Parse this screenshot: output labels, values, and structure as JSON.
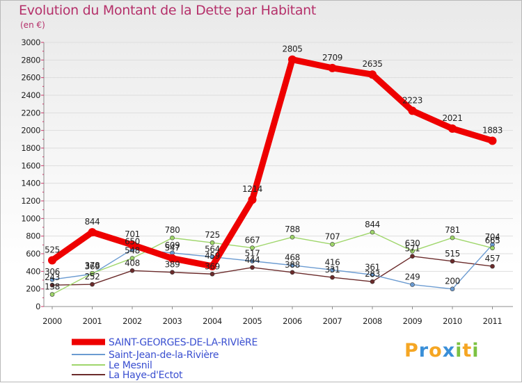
{
  "chart_data": {
    "type": "line",
    "title": "Evolution du Montant de la Dette par Habitant",
    "subtitle": "(en €)",
    "xlabel": "",
    "ylabel": "",
    "ylim": [
      0,
      3000
    ],
    "yticks": [
      0,
      200,
      400,
      600,
      800,
      1000,
      1200,
      1400,
      1600,
      1800,
      2000,
      2200,
      2400,
      2600,
      2800,
      3000
    ],
    "categories": [
      "2000",
      "2001",
      "2002",
      "2003",
      "2004",
      "2005",
      "2006",
      "2007",
      "2008",
      "2009",
      "2010",
      "2011"
    ],
    "grid": true,
    "legend_position": "bottom-left",
    "series": [
      {
        "name": "SAINT-GEORGES-DE-LA-RIVIèRE",
        "color": "#ee0000",
        "values": [
          525,
          844,
          701,
          547,
          459,
          1214,
          2805,
          2709,
          2635,
          2223,
          2021,
          1883
        ],
        "labels": [
          "525",
          "844",
          "701",
          "547",
          "459",
          "1214",
          "2805",
          "2709",
          "2635",
          "2223",
          "2021",
          "1883"
        ]
      },
      {
        "name": "Saint-Jean-de-la-Rivière",
        "color": "#6b9bd1",
        "values": [
          306,
          369,
          650,
          609,
          564,
          517,
          468,
          416,
          361,
          249,
          200,
          704
        ],
        "labels": [
          "306",
          "369",
          "650",
          "609",
          "564",
          "517",
          "468",
          "416",
          "361",
          "249",
          "200",
          "704"
        ]
      },
      {
        "name": "Le Mesnil",
        "color": "#9fd66b",
        "values": [
          138,
          378,
          548,
          780,
          725,
          667,
          788,
          707,
          844,
          630,
          781,
          665
        ],
        "labels": [
          "138",
          "378",
          "548",
          "780",
          "725",
          "667",
          "788",
          "707",
          "844",
          "630",
          "781",
          "665"
        ]
      },
      {
        "name": "La Haye-d'Ectot",
        "color": "#6b2b2b",
        "values": [
          243,
          252,
          408,
          389,
          369,
          444,
          388,
          331,
          283,
          571,
          515,
          457
        ],
        "labels": [
          "243",
          "252",
          "408",
          "389",
          "369",
          "444",
          "388",
          "331",
          "283",
          "571",
          "515",
          "457"
        ]
      }
    ]
  },
  "logo": {
    "text": "Proxiti"
  }
}
